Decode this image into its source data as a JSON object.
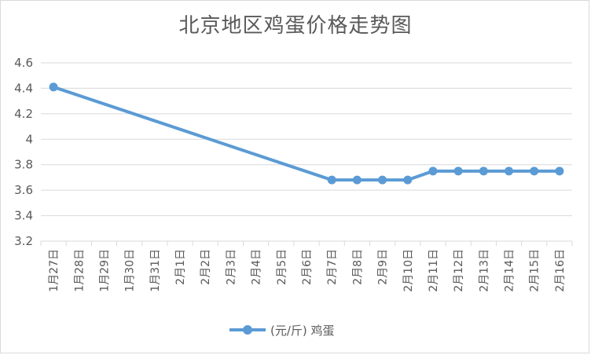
{
  "chart_data": {
    "type": "line",
    "title": "北京地区鸡蛋价格走势图",
    "categories": [
      "1月27日",
      "1月28日",
      "1月29日",
      "1月30日",
      "1月31日",
      "2月1日",
      "2月2日",
      "2月3日",
      "2月4日",
      "2月5日",
      "2月6日",
      "2月7日",
      "2月8日",
      "2月9日",
      "2月10日",
      "2月11日",
      "2月12日",
      "2月13日",
      "2月14日",
      "2月15日",
      "2月16日"
    ],
    "series": [
      {
        "name": "(元/斤) 鸡蛋",
        "values": [
          4.41,
          null,
          null,
          null,
          null,
          null,
          null,
          null,
          null,
          null,
          null,
          3.68,
          3.68,
          3.68,
          3.68,
          3.75,
          3.75,
          3.75,
          3.75,
          3.75,
          3.75
        ]
      }
    ],
    "yticks": [
      "3.2",
      "3.4",
      "3.6",
      "3.8",
      "4",
      "4.2",
      "4.4",
      "4.6"
    ],
    "ylim": [
      3.2,
      4.6
    ],
    "grid": true,
    "legend_position": "bottom",
    "colors": {
      "series": "#5b9bd5",
      "grid": "#d9d9d9",
      "text": "#595959"
    }
  }
}
